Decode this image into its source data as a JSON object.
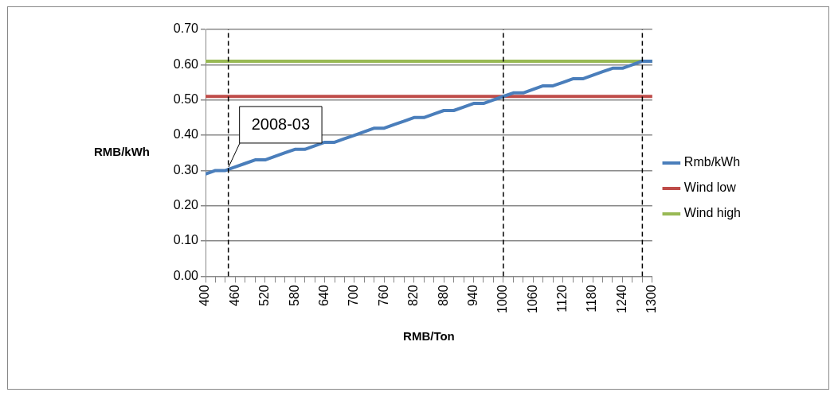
{
  "chart_data": {
    "type": "line",
    "xlabel": "RMB/Ton",
    "ylabel": "RMB/kWh",
    "x": [
      400,
      420,
      440,
      460,
      480,
      500,
      520,
      540,
      560,
      580,
      600,
      620,
      640,
      660,
      680,
      700,
      720,
      740,
      760,
      780,
      800,
      820,
      840,
      860,
      880,
      900,
      920,
      940,
      960,
      980,
      1000,
      1020,
      1040,
      1060,
      1080,
      1100,
      1120,
      1140,
      1160,
      1180,
      1200,
      1220,
      1240,
      1260,
      1280,
      1300
    ],
    "series": [
      {
        "name": "Rmb/kWh",
        "color": "#4a7ebb",
        "values": [
          0.29,
          0.3,
          0.3,
          0.31,
          0.32,
          0.33,
          0.33,
          0.34,
          0.35,
          0.36,
          0.36,
          0.37,
          0.38,
          0.38,
          0.39,
          0.4,
          0.41,
          0.42,
          0.42,
          0.43,
          0.44,
          0.45,
          0.45,
          0.46,
          0.47,
          0.47,
          0.48,
          0.49,
          0.49,
          0.5,
          0.51,
          0.52,
          0.52,
          0.53,
          0.54,
          0.54,
          0.55,
          0.56,
          0.56,
          0.57,
          0.58,
          0.59,
          0.59,
          0.6,
          0.61,
          0.61
        ]
      },
      {
        "name": "Wind low",
        "color": "#be4b48",
        "values": [
          0.51,
          0.51,
          0.51,
          0.51,
          0.51,
          0.51,
          0.51,
          0.51,
          0.51,
          0.51,
          0.51,
          0.51,
          0.51,
          0.51,
          0.51,
          0.51,
          0.51,
          0.51,
          0.51,
          0.51,
          0.51,
          0.51,
          0.51,
          0.51,
          0.51,
          0.51,
          0.51,
          0.51,
          0.51,
          0.51,
          0.51,
          0.51,
          0.51,
          0.51,
          0.51,
          0.51,
          0.51,
          0.51,
          0.51,
          0.51,
          0.51,
          0.51,
          0.51,
          0.51,
          0.51,
          0.51
        ]
      },
      {
        "name": "Wind high",
        "color": "#98b954",
        "values": [
          0.61,
          0.61,
          0.61,
          0.61,
          0.61,
          0.61,
          0.61,
          0.61,
          0.61,
          0.61,
          0.61,
          0.61,
          0.61,
          0.61,
          0.61,
          0.61,
          0.61,
          0.61,
          0.61,
          0.61,
          0.61,
          0.61,
          0.61,
          0.61,
          0.61,
          0.61,
          0.61,
          0.61,
          0.61,
          0.61,
          0.61,
          0.61,
          0.61,
          0.61,
          0.61,
          0.61,
          0.61,
          0.61,
          0.61,
          0.61,
          0.61,
          0.61,
          0.61,
          0.61,
          0.61,
          0.61
        ]
      }
    ],
    "xlim": [
      400,
      1300
    ],
    "xticks": [
      400,
      {
        "value": 420,
        "label": null
      },
      {
        "value": 440,
        "label": null
      },
      460,
      {
        "value": 480,
        "label": null
      },
      {
        "value": 500,
        "label": null
      },
      520,
      {
        "value": 540,
        "label": null
      },
      {
        "value": 560,
        "label": null
      },
      580,
      {
        "value": 600,
        "label": null
      },
      {
        "value": 620,
        "label": null
      },
      640,
      {
        "value": 660,
        "label": null
      },
      {
        "value": 680,
        "label": null
      },
      700,
      {
        "value": 720,
        "label": null
      },
      {
        "value": 740,
        "label": null
      },
      760,
      {
        "value": 780,
        "label": null
      },
      {
        "value": 800,
        "label": null
      },
      820,
      {
        "value": 840,
        "label": null
      },
      {
        "value": 860,
        "label": null
      },
      880,
      {
        "value": 900,
        "label": null
      },
      {
        "value": 920,
        "label": null
      },
      940,
      {
        "value": 960,
        "label": null
      },
      {
        "value": 980,
        "label": null
      },
      1000,
      {
        "value": 1020,
        "label": null
      },
      {
        "value": 1040,
        "label": null
      },
      1060,
      {
        "value": 1080,
        "label": null
      },
      {
        "value": 1100,
        "label": null
      },
      1120,
      {
        "value": 1140,
        "label": null
      },
      {
        "value": 1160,
        "label": null
      },
      1180,
      {
        "value": 1200,
        "label": null
      },
      {
        "value": 1220,
        "label": null
      },
      1240,
      {
        "value": 1260,
        "label": null
      },
      {
        "value": 1280,
        "label": null
      },
      1300
    ],
    "ylim": [
      0,
      0.7
    ],
    "yticks": [
      {
        "value": 0,
        "label": "0.00"
      },
      {
        "value": 0.1,
        "label": "0.10"
      },
      {
        "value": 0.2,
        "label": "0.20"
      },
      {
        "value": 0.3,
        "label": "0.30"
      },
      {
        "value": 0.4,
        "label": "0.40"
      },
      {
        "value": 0.5,
        "label": "0.50"
      },
      {
        "value": 0.6,
        "label": "0.60"
      },
      {
        "value": 0.7,
        "label": "0.70"
      }
    ],
    "ref_lines": [
      {
        "axis": "x",
        "value": 446,
        "color": "#000000",
        "line_style": "dashed"
      },
      {
        "axis": "x",
        "value": 1000,
        "color": "#000000",
        "line_style": "dashed"
      },
      {
        "axis": "x",
        "value": 1280,
        "color": "#000000",
        "line_style": "dashed"
      }
    ],
    "annotations": [
      {
        "text": "2008-03",
        "x": 446,
        "y": 0.31
      }
    ],
    "grid": "y",
    "legend": "right",
    "marker": "none",
    "line_style": "solid"
  }
}
